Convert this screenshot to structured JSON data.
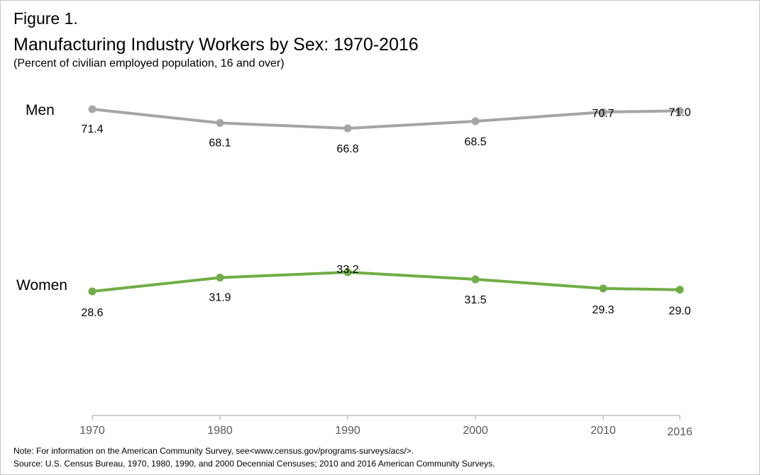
{
  "figure_label": "Figure 1.",
  "title": "Manufacturing Industry Workers by Sex: 1970-2016",
  "subtitle": "(Percent of civilian employed population, 16 and over)",
  "notes": {
    "note": "Note: For information on the American Community Survey, see<www.census.gov/programs-surveys/acs/>.",
    "source": "Source: U.S. Census Bureau, 1970, 1980, 1990, and 2000 Decennial Censuses; 2010 and 2016 American Community Surveys."
  },
  "colors": {
    "men": "#a5a5a5",
    "women": "#70ad47",
    "axis": "#bfbfbf"
  },
  "chart_data": {
    "type": "line",
    "x": [
      "1970",
      "1980",
      "1990",
      "2000",
      "2010",
      "2016"
    ],
    "series": [
      {
        "name": "Men",
        "values": [
          71.4,
          68.1,
          66.8,
          68.5,
          70.7,
          71.0
        ]
      },
      {
        "name": "Women",
        "values": [
          28.6,
          31.9,
          33.2,
          31.5,
          29.3,
          29.0
        ]
      }
    ],
    "title": "Manufacturing Industry Workers by Sex: 1970-2016",
    "ylabel": "",
    "xlabel": "",
    "grid": false,
    "data_labels": true
  }
}
